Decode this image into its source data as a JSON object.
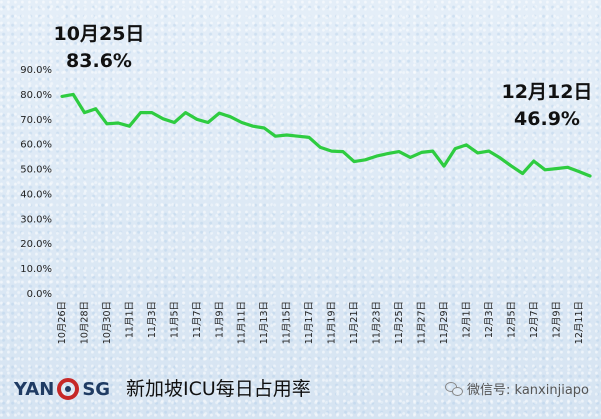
{
  "chart_data": {
    "type": "line",
    "title": "",
    "xlabel": "",
    "ylabel": "",
    "ylim": [
      0,
      90
    ],
    "yticks": [
      "0.0%",
      "10.0%",
      "20.0%",
      "30.0%",
      "40.0%",
      "50.0%",
      "60.0%",
      "70.0%",
      "80.0%",
      "90.0%"
    ],
    "grid": false,
    "line_color": "#2ecc40",
    "x": [
      "10月26日",
      "10月27日",
      "10月28日",
      "10月29日",
      "10月30日",
      "10月31日",
      "11月1日",
      "11月2日",
      "11月3日",
      "11月4日",
      "11月5日",
      "11月6日",
      "11月7日",
      "11月8日",
      "11月9日",
      "11月10日",
      "11月11日",
      "11月12日",
      "11月13日",
      "11月14日",
      "11月15日",
      "11月16日",
      "11月17日",
      "11月18日",
      "11月19日",
      "11月20日",
      "11月21日",
      "11月22日",
      "11月23日",
      "11月24日",
      "11月25日",
      "11月26日",
      "11月27日",
      "11月28日",
      "11月29日",
      "11月30日",
      "12月1日",
      "12月2日",
      "12月3日",
      "12月4日",
      "12月5日",
      "12月6日",
      "12月7日",
      "12月8日",
      "12月9日",
      "12月10日",
      "12月11日",
      "12月12日"
    ],
    "x_tick_labels": [
      "10月26日",
      "10月28日",
      "10月30日",
      "11月1日",
      "11月3日",
      "11月5日",
      "11月7日",
      "11月9日",
      "11月11日",
      "11月13日",
      "11月15日",
      "11月17日",
      "11月19日",
      "11月21日",
      "11月23日",
      "11月25日",
      "11月27日",
      "11月29日",
      "12月1日",
      "12月3日",
      "12月5日",
      "12月7日",
      "12月9日",
      "12月11日"
    ],
    "values": [
      79.0,
      79.8,
      72.5,
      74.0,
      68.0,
      68.3,
      67.0,
      72.5,
      72.5,
      70.0,
      68.5,
      72.5,
      69.8,
      68.5,
      72.3,
      70.8,
      68.5,
      67.0,
      66.3,
      63.0,
      63.5,
      63.0,
      62.5,
      58.5,
      57.0,
      56.8,
      52.8,
      53.5,
      55.0,
      56.0,
      56.8,
      54.5,
      56.5,
      57.0,
      51.0,
      58.0,
      59.5,
      56.3,
      57.0,
      54.3,
      51.0,
      48.0,
      53.0,
      49.5,
      50.0,
      50.5,
      48.8,
      47.0
    ],
    "annotations": [
      {
        "date": "10月25日",
        "value": "83.6%"
      },
      {
        "date": "12月12日",
        "value": "46.9%"
      }
    ]
  },
  "footer": {
    "logo_left": "YAN",
    "logo_right": "SG",
    "title": "新加坡ICU每日占用率",
    "wechat": "微信号: kanxinjiapo"
  }
}
